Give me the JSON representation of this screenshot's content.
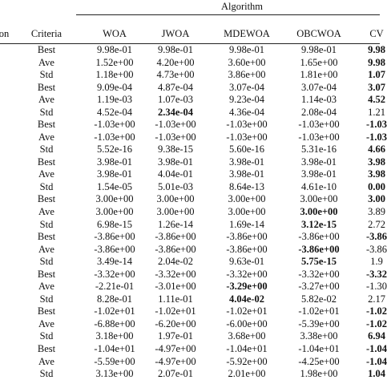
{
  "table": {
    "group": "Algorithm",
    "columns": [
      "on",
      "Criteria",
      "WOA",
      "JWOA",
      "MDEWOA",
      "OBCWOA",
      "CV"
    ],
    "rows": [
      {
        "criteria": "Best",
        "values": [
          "9.98e-01",
          "9.98e-01",
          "9.98e-01",
          "9.98e-01",
          "9.98"
        ],
        "bold": [
          4
        ]
      },
      {
        "criteria": "Ave",
        "values": [
          "1.52e+00",
          "4.20e+00",
          "3.60e+00",
          "1.65e+00",
          "9.98"
        ],
        "bold": [
          4
        ]
      },
      {
        "criteria": "Std",
        "values": [
          "1.18e+00",
          "4.73e+00",
          "3.86e+00",
          "1.81e+00",
          "1.07"
        ],
        "bold": [
          4
        ]
      },
      {
        "criteria": "Best",
        "values": [
          "9.09e-04",
          "4.87e-04",
          "3.07e-04",
          "3.07e-04",
          "3.07"
        ],
        "bold": [
          4
        ]
      },
      {
        "criteria": "Ave",
        "values": [
          "1.19e-03",
          "1.07e-03",
          "9.23e-04",
          "1.14e-03",
          "4.52"
        ],
        "bold": [
          4
        ]
      },
      {
        "criteria": "Std",
        "values": [
          "4.52e-04",
          "2.34e-04",
          "4.36e-04",
          "2.08e-04",
          "1.21"
        ],
        "bold": [
          1
        ]
      },
      {
        "criteria": "Best",
        "values": [
          "-1.03e+00",
          "-1.03e+00",
          "-1.03e+00",
          "-1.03e+00",
          "-1.03"
        ],
        "bold": [
          4
        ]
      },
      {
        "criteria": "Ave",
        "values": [
          "-1.03e+00",
          "-1.03e+00",
          "-1.03e+00",
          "-1.03e+00",
          "-1.03"
        ],
        "bold": [
          4
        ]
      },
      {
        "criteria": "Std",
        "values": [
          "5.52e-16",
          "9.38e-15",
          "5.60e-16",
          "5.31e-16",
          "4.66"
        ],
        "bold": [
          4
        ]
      },
      {
        "criteria": "Best",
        "values": [
          "3.98e-01",
          "3.98e-01",
          "3.98e-01",
          "3.98e-01",
          "3.98"
        ],
        "bold": [
          4
        ]
      },
      {
        "criteria": "Ave",
        "values": [
          "3.98e-01",
          "4.04e-01",
          "3.98e-01",
          "3.98e-01",
          "3.98"
        ],
        "bold": [
          4
        ]
      },
      {
        "criteria": "Std",
        "values": [
          "1.54e-05",
          "5.01e-03",
          "8.64e-13",
          "4.61e-10",
          "0.00"
        ],
        "bold": [
          4
        ]
      },
      {
        "criteria": "Best",
        "values": [
          "3.00e+00",
          "3.00e+00",
          "3.00e+00",
          "3.00e+00",
          "3.00"
        ],
        "bold": [
          4
        ]
      },
      {
        "criteria": "Ave",
        "values": [
          "3.00e+00",
          "3.00e+00",
          "3.00e+00",
          "3.00e+00",
          "3.89"
        ],
        "bold": [
          3
        ]
      },
      {
        "criteria": "Std",
        "values": [
          "6.98e-15",
          "1.26e-14",
          "1.69e-14",
          "3.12e-15",
          "2.72"
        ],
        "bold": [
          3
        ]
      },
      {
        "criteria": "Best",
        "values": [
          "-3.86e+00",
          "-3.86e+00",
          "-3.86e+00",
          "-3.86e+00",
          "-3.86"
        ],
        "bold": [
          4
        ]
      },
      {
        "criteria": "Ave",
        "values": [
          "-3.86e+00",
          "-3.86e+00",
          "-3.86e+00",
          "-3.86e+00",
          "-3.86"
        ],
        "bold": [
          3
        ]
      },
      {
        "criteria": "Std",
        "values": [
          "3.49e-14",
          "2.04e-02",
          "9.63e-01",
          "5.75e-15",
          "1.9"
        ],
        "bold": [
          3
        ]
      },
      {
        "criteria": "Best",
        "values": [
          "-3.32e+00",
          "-3.32e+00",
          "-3.32e+00",
          "-3.32e+00",
          "-3.32"
        ],
        "bold": [
          4
        ]
      },
      {
        "criteria": "Ave",
        "values": [
          "-2.21e-01",
          "-3.01e+00",
          "-3.29e+00",
          "-3.27e+00",
          "-1.30"
        ],
        "bold": [
          2
        ]
      },
      {
        "criteria": "Std",
        "values": [
          "8.28e-01",
          "1.11e-01",
          "4.04e-02",
          "5.82e-02",
          "2.17"
        ],
        "bold": [
          2
        ]
      },
      {
        "criteria": "Best",
        "values": [
          "-1.02e+01",
          "-1.02e+01",
          "-1.02e+01",
          "-1.02e+01",
          "-1.02"
        ],
        "bold": [
          4
        ]
      },
      {
        "criteria": "Ave",
        "values": [
          "-6.88e+00",
          "-6.20e+00",
          "-6.00e+00",
          "-5.39e+00",
          "-1.02"
        ],
        "bold": [
          4
        ]
      },
      {
        "criteria": "Std",
        "values": [
          "3.18e+00",
          "1.97e-01",
          "3.68e+00",
          "3.38e+00",
          "6.94"
        ],
        "bold": [
          4
        ]
      },
      {
        "criteria": "Best",
        "values": [
          "-1.04e+01",
          "-4.97e+00",
          "-1.04e+01",
          "-1.04e+01",
          "-1.04"
        ],
        "bold": [
          4
        ]
      },
      {
        "criteria": "Ave",
        "values": [
          "-5.59e+00",
          "-4.97e+00",
          "-5.92e+00",
          "-4.25e+00",
          "-1.04"
        ],
        "bold": [
          4
        ]
      },
      {
        "criteria": "Std",
        "values": [
          "3.13e+00",
          "2.07e-01",
          "2.01e+00",
          "1.98e+00",
          "1.04"
        ],
        "bold": [
          4
        ]
      }
    ]
  }
}
